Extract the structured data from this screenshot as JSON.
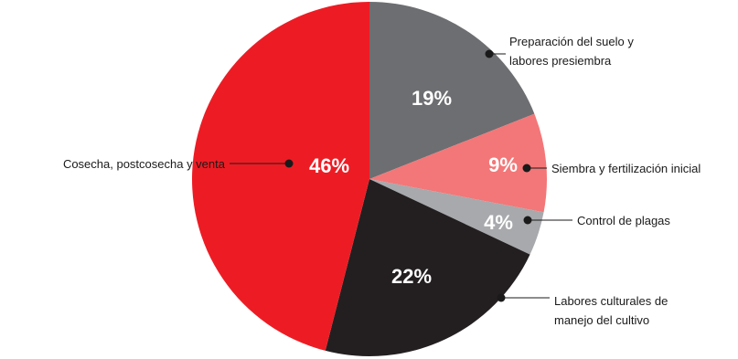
{
  "chart_data": {
    "type": "pie",
    "title": "",
    "start_angle_deg": 0,
    "direction": "clockwise",
    "slices": [
      {
        "label_lines": [
          "Preparación del suelo y",
          "labores presiembra"
        ],
        "value": 19,
        "display": "19%",
        "color": "#6d6e71"
      },
      {
        "label_lines": [
          "Siembra y fertilización inicial"
        ],
        "value": 9,
        "display": "9%",
        "color": "#f37778"
      },
      {
        "label_lines": [
          "Control de plagas"
        ],
        "value": 4,
        "display": "4%",
        "color": "#a7a9ac"
      },
      {
        "label_lines": [
          "Labores culturales de",
          "manejo del cultivo"
        ],
        "value": 22,
        "display": "22%",
        "color": "#231f20"
      },
      {
        "label_lines": [
          "Cosecha, postcosecha y venta"
        ],
        "value": 46,
        "display": "46%",
        "color": "#ed1c24"
      }
    ]
  }
}
